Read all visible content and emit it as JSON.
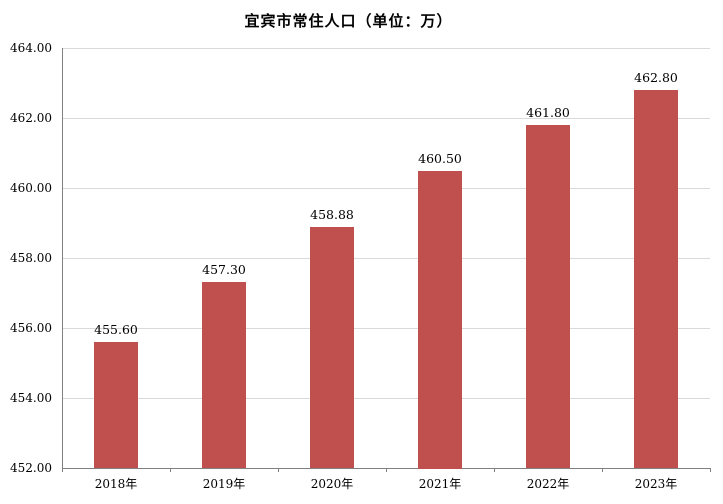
{
  "chart_data": {
    "type": "bar",
    "title": "宜宾市常住人口（单位：万）",
    "categories": [
      "2018年",
      "2019年",
      "2020年",
      "2021年",
      "2022年",
      "2023年"
    ],
    "values": [
      455.6,
      457.3,
      458.88,
      460.5,
      461.8,
      462.8
    ],
    "value_labels": [
      "455.60",
      "457.30",
      "458.88",
      "460.50",
      "461.80",
      "462.80"
    ],
    "xlabel": "",
    "ylabel": "",
    "ylim": [
      452,
      464
    ],
    "ytick_step": 2,
    "ytick_labels": [
      "452.00",
      "454.00",
      "456.00",
      "458.00",
      "460.00",
      "462.00",
      "464.00"
    ],
    "grid": true,
    "legend_position": "none",
    "bar_color": "#C0504D",
    "gridline_color": "#D9D9D9",
    "axis_color": "#808080",
    "background_color": "#FFFFFF",
    "text_color": "#000000"
  }
}
